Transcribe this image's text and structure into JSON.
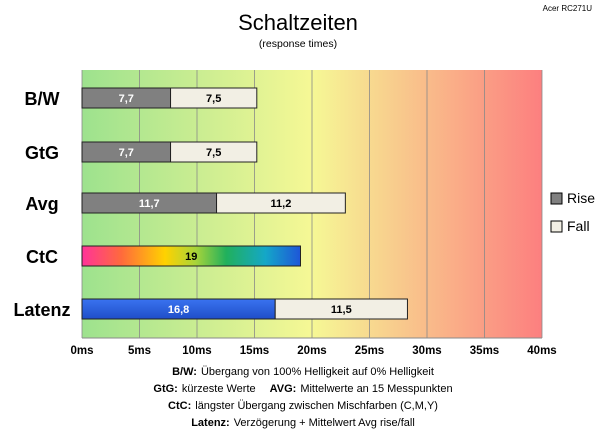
{
  "chart_data": {
    "type": "bar",
    "orientation": "horizontal",
    "stacked": true,
    "title": "Schaltzeiten",
    "subtitle": "(response times)",
    "corner_label": "Acer RC271U",
    "categories": [
      "B/W",
      "GtG",
      "Avg",
      "CtC",
      "Latenz"
    ],
    "x_ticks": [
      "0ms",
      "5ms",
      "10ms",
      "15ms",
      "20ms",
      "25ms",
      "30ms",
      "35ms",
      "40ms"
    ],
    "xlim": [
      0,
      40
    ],
    "x_unit": "ms",
    "grid": true,
    "legend_position": "right",
    "series": [
      {
        "name": "Rise",
        "color": "#808080",
        "values": [
          7.7,
          7.7,
          11.7,
          null,
          16.8
        ],
        "labels": [
          "7,7",
          "7,7",
          "11,7",
          "",
          "16,8"
        ]
      },
      {
        "name": "Fall",
        "color": "#f2efe4",
        "values": [
          7.5,
          7.5,
          11.2,
          null,
          11.5
        ],
        "labels": [
          "7,5",
          "7,5",
          "11,2",
          "",
          "11,5"
        ]
      }
    ],
    "special_bars": [
      {
        "category": "CtC",
        "value": 19,
        "label": "19",
        "fill": "rainbow-gradient"
      },
      {
        "category": "Latenz",
        "segment": "Rise",
        "fill": "blue",
        "color": "#2255d8"
      }
    ],
    "background_gradient": [
      "#9de28e",
      "#f6f895",
      "#fc7f7f"
    ],
    "notes": [
      {
        "key": "B/W:",
        "text": "Übergang von 100% Helligkeit auf 0% Helligkeit"
      },
      {
        "key": "GtG:",
        "text": "kürzeste Werte",
        "key2": "AVG:",
        "text2": "Mittelwerte an 15 Messpunkten"
      },
      {
        "key": "CtC:",
        "text": "längster Übergang zwischen Mischfarben (C,M,Y)"
      },
      {
        "key": "Latenz:",
        "text": "Verzögerung + Mittelwert Avg rise/fall"
      }
    ]
  }
}
